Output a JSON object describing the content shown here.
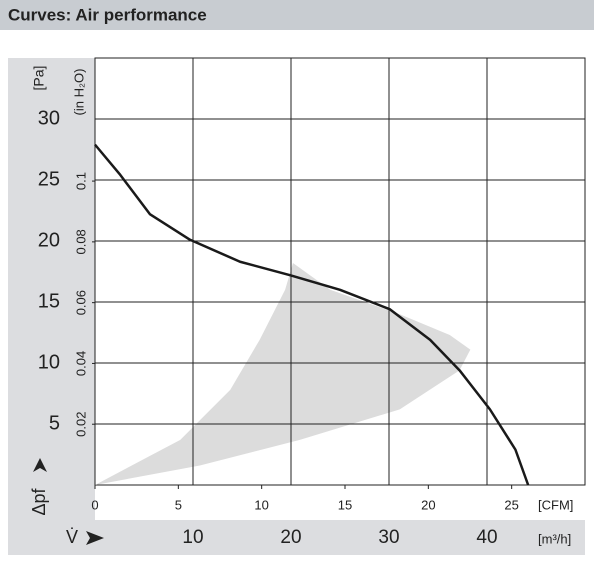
{
  "chart_data": {
    "type": "line",
    "title": "Curves: Air performance",
    "y_label": "[Pa]",
    "y2_label": "(in H₂O)",
    "y_axis_symbol": "Δpf",
    "x_label": "[m³/h]",
    "x2_label": "[CFM]",
    "x_axis_symbol": "V̇",
    "xlim": [
      0,
      50
    ],
    "xticks": [
      10,
      20,
      30,
      40
    ],
    "x2lim": [
      0,
      29.4
    ],
    "x2ticks": [
      0,
      5,
      10,
      15,
      20,
      25
    ],
    "ylim": [
      0,
      35
    ],
    "yticks": [
      5,
      10,
      15,
      20,
      25,
      30
    ],
    "y2lim": [
      0,
      0.1405
    ],
    "y2ticks": [
      0.02,
      0.04,
      0.06,
      0.08,
      0.1
    ],
    "grid": true,
    "series": [
      {
        "color": "#dcdcdc",
        "fill": true,
        "x": [
          0,
          8.7,
          13.8,
          16.8,
          19.4,
          20.2,
          24,
          31.1,
          36.2,
          38.3,
          37.2,
          31.1,
          20.9,
          10.7,
          0
        ],
        "values": [
          0,
          3.7,
          7.8,
          11.9,
          16.0,
          18.2,
          16.0,
          14.0,
          12.3,
          11.1,
          9.4,
          6.2,
          3.7,
          1.6,
          0
        ]
      },
      {
        "color": "#1a1a1a",
        "x": [
          0,
          2.5,
          5.6,
          9.7,
          14.8,
          19.9,
          25,
          30.1,
          34.2,
          37.2,
          40.3,
          42.9,
          44.2
        ],
        "values": [
          27.9,
          25.5,
          22.2,
          20.1,
          18.3,
          17.2,
          16.0,
          14.4,
          11.9,
          9.4,
          6.2,
          2.9,
          0
        ]
      }
    ]
  }
}
